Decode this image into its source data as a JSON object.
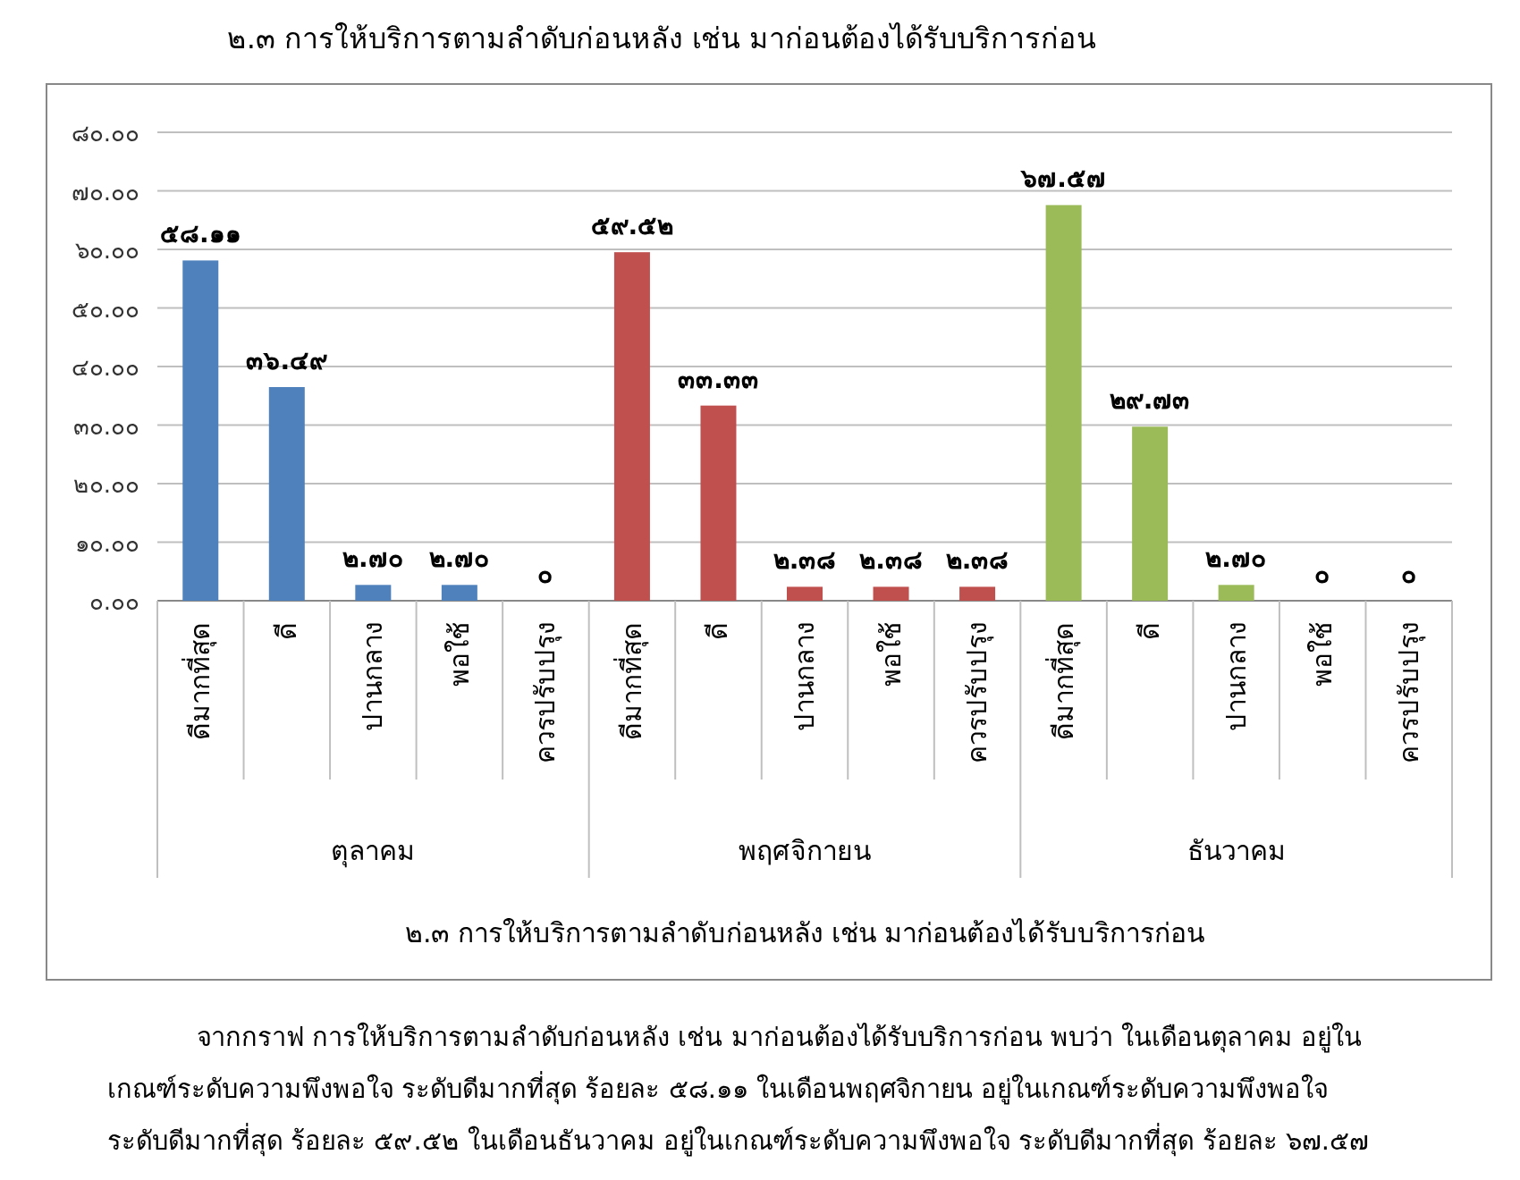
{
  "chart_data": {
    "type": "bar",
    "title": "๒.๓ การให้บริการตามลำดับก่อนหลัง เช่น มาก่อนต้องได้รับบริการก่อน",
    "categories": [
      "ดีมากที่สุด",
      "ดี",
      "ปานกลาง",
      "พอใช้",
      "ควรปรับปรุง",
      "ดีมากที่สุด",
      "ดี",
      "ปานกลาง",
      "พอใช้",
      "ควรปรับปรุง",
      "ดีมากที่สุด",
      "ดี",
      "ปานกลาง",
      "พอใช้",
      "ควรปรับปรุง"
    ],
    "values": [
      58.11,
      36.49,
      2.7,
      2.7,
      0,
      59.52,
      33.33,
      2.38,
      2.38,
      2.38,
      67.57,
      29.73,
      2.7,
      0,
      0
    ],
    "value_labels": [
      "๕๘.๑๑",
      "๓๖.๔๙",
      "๒.๗๐",
      "๒.๗๐",
      "๐",
      "๕๙.๕๒",
      "๓๓.๓๓",
      "๒.๓๘",
      "๒.๓๘",
      "๒.๓๘",
      "๖๗.๕๗",
      "๒๙.๗๓",
      "๒.๗๐",
      "๐",
      "๐"
    ],
    "colors": [
      "#4f81bd",
      "#4f81bd",
      "#4f81bd",
      "#4f81bd",
      "#4f81bd",
      "#c0504d",
      "#c0504d",
      "#c0504d",
      "#c0504d",
      "#c0504d",
      "#9bbb59",
      "#9bbb59",
      "#9bbb59",
      "#9bbb59",
      "#9bbb59"
    ],
    "ylim": [
      0,
      80
    ],
    "yticks": [
      {
        "value": 0,
        "label": "๐.๐๐"
      },
      {
        "value": 10,
        "label": "๑๐.๐๐"
      },
      {
        "value": 20,
        "label": "๒๐.๐๐"
      },
      {
        "value": 30,
        "label": "๓๐.๐๐"
      },
      {
        "value": 40,
        "label": "๔๐.๐๐"
      },
      {
        "value": 50,
        "label": "๕๐.๐๐"
      },
      {
        "value": 60,
        "label": "๖๐.๐๐"
      },
      {
        "value": 70,
        "label": "๗๐.๐๐"
      },
      {
        "value": 80,
        "label": "๘๐.๐๐"
      }
    ],
    "grid": "y",
    "annotations": [
      "ตุลาคม",
      "พฤศจิกายน",
      "ธันวาคม",
      "๒.๓ การให้บริการตามลำดับก่อนหลัง  เช่น มาก่อนต้องได้รับบริการก่อน",
      "จากกราฟ การให้บริการตามลำดับก่อนหลัง เช่น มาก่อนต้องได้รับบริการก่อน พบว่า ในเดือนตุลาคม อยู่ใน",
      "เกณฑ์ระดับความพึงพอใจ ระดับดีมากที่สุด ร้อยละ ๕๘.๑๑  ในเดือนพฤศจิกายน อยู่ในเกณฑ์ระดับความพึงพอใจ",
      "ระดับดีมากที่สุด ร้อยละ ๕๙.๕๒  ในเดือนธันวาคม อยู่ในเกณฑ์ระดับความพึงพอใจ ระดับดีมากที่สุด ร้อยละ ๖๗.๕๗"
    ]
  }
}
